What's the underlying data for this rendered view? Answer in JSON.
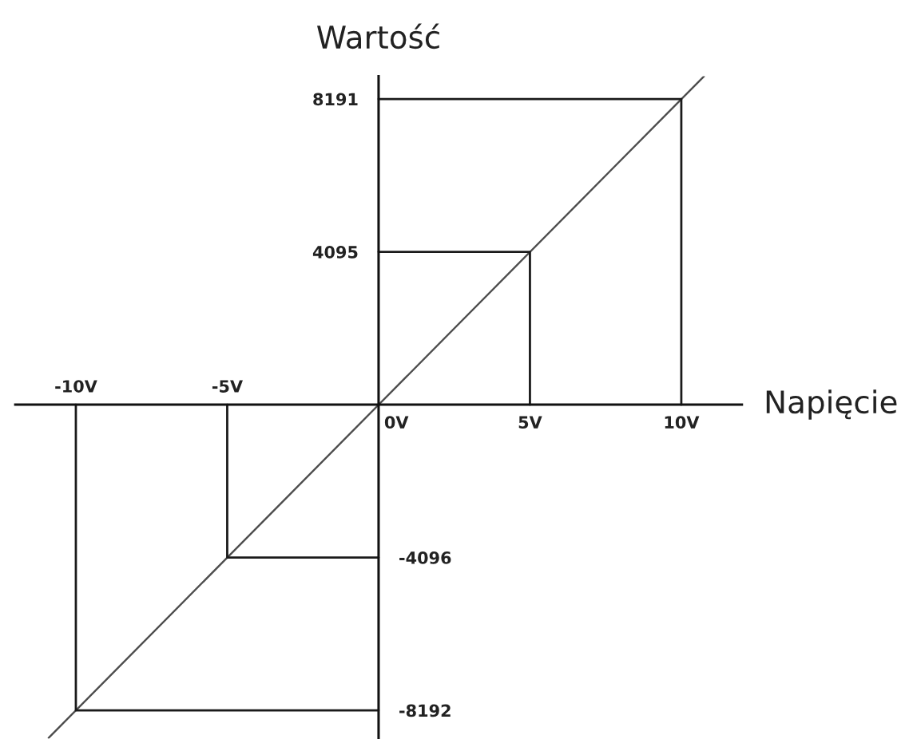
{
  "chart_data": {
    "type": "line",
    "xlabel": "Napięcie",
    "ylabel": "Wartość",
    "xlim": [
      -12,
      12
    ],
    "ylim": [
      -8950,
      8800
    ],
    "x2lim": [
      -12,
      12
    ],
    "y2lim": [
      -8950,
      8800
    ],
    "xticks": [
      {
        "value": 0,
        "label": "0V"
      },
      {
        "value": 5,
        "label": "5V"
      },
      {
        "value": 10,
        "label": "10V"
      }
    ],
    "x2ticks": [
      {
        "value": -10,
        "label": "-10V"
      },
      {
        "value": -5,
        "label": "-5V"
      }
    ],
    "yticks": [
      8191,
      4095
    ],
    "y2ticks": [
      -4096,
      -8192
    ],
    "series": [
      {
        "color": "#4d4d4d",
        "x": [
          -10.9,
          10.75
        ],
        "values": [
          -8930,
          8800
        ]
      },
      {
        "color": "#1a1a1a",
        "x": [
          10,
          10,
          0
        ],
        "values": [
          0,
          8191,
          8191
        ]
      },
      {
        "color": "#1a1a1a",
        "x": [
          5,
          5,
          0
        ],
        "values": [
          0,
          4095,
          4095
        ]
      },
      {
        "color": "#1a1a1a",
        "x": [
          -5,
          -5,
          0
        ],
        "values": [
          0,
          -4096,
          -4096
        ]
      },
      {
        "color": "#1a1a1a",
        "x": [
          -10,
          -10,
          0
        ],
        "values": [
          0,
          -8192,
          -8192
        ]
      }
    ]
  }
}
